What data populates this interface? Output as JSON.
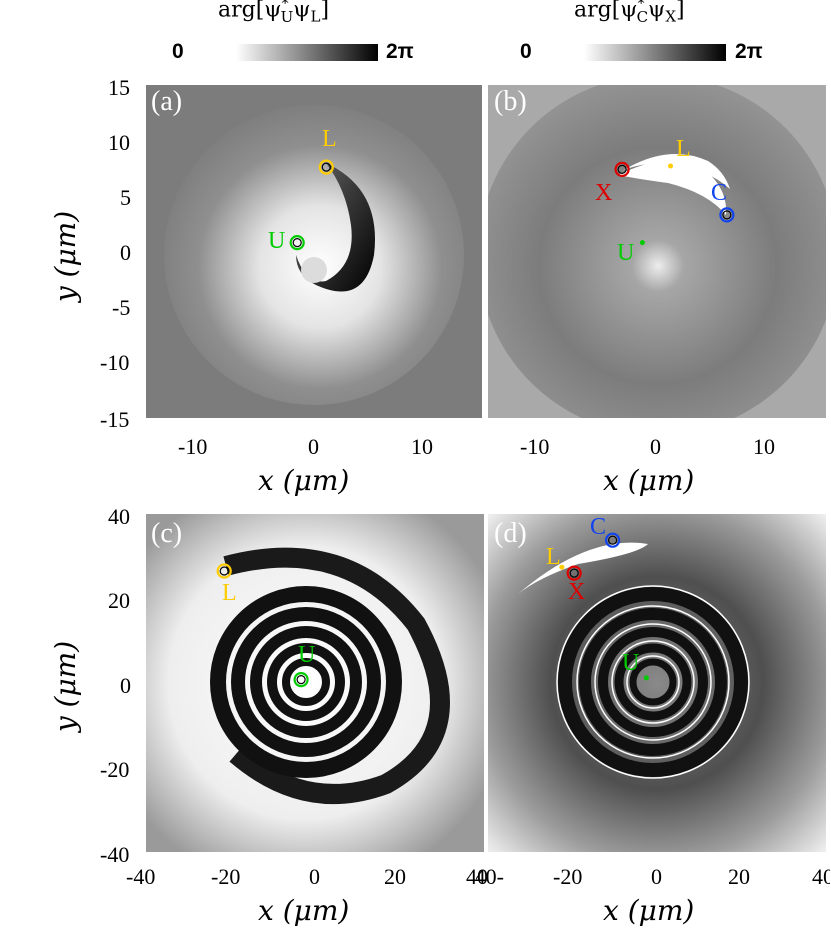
{
  "colorbars": [
    {
      "title": "arg[ψ*Uψ_L]",
      "title_base": "arg[ψ",
      "t_sup": "*",
      "t_sub1": "U",
      "t_mid": "ψ",
      "t_sub2": "L",
      "t_end": "]",
      "min_label": "0",
      "max_label": "2π"
    },
    {
      "title": "arg[ψ*Cψ_X]",
      "title_base": "arg[ψ",
      "t_sup": "*",
      "t_sub1": "C",
      "t_mid": "ψ",
      "t_sub2": "X",
      "t_end": "]",
      "min_label": "0",
      "max_label": "2π"
    }
  ],
  "colors": {
    "U": "#00cc00",
    "L": "#ffcc00",
    "X": "#dd0000",
    "C": "#1144ee"
  },
  "chart_data": [
    {
      "type": "heatmap",
      "panel": "(a)",
      "xlabel": "x (μm)",
      "ylabel": "y (μm)",
      "xlim": [
        -15,
        15
      ],
      "ylim": [
        -15,
        15
      ],
      "xticks": [
        "-10",
        "0",
        "10"
      ],
      "yticks": [
        "15",
        "10",
        "5",
        "0",
        "-5",
        "-10",
        "-15"
      ],
      "markers": [
        {
          "name": "U",
          "x": -1.5,
          "y": 0.8,
          "style": "ring"
        },
        {
          "name": "L",
          "x": 1.1,
          "y": 7.6,
          "style": "ring"
        }
      ]
    },
    {
      "type": "heatmap",
      "panel": "(b)",
      "xlabel": "x (μm)",
      "xlim": [
        -15,
        15
      ],
      "ylim": [
        -15,
        15
      ],
      "xticks": [
        "-10",
        "0",
        "10"
      ],
      "markers": [
        {
          "name": "L",
          "x": 1.2,
          "y": 7.7,
          "style": "dot"
        },
        {
          "name": "X",
          "x": -3.1,
          "y": 7.4,
          "style": "ring"
        },
        {
          "name": "C",
          "x": 6.2,
          "y": 3.3,
          "style": "ring"
        },
        {
          "name": "U",
          "x": -1.3,
          "y": 0.8,
          "style": "dot"
        }
      ]
    },
    {
      "type": "heatmap",
      "panel": "(c)",
      "xlabel": "x (μm)",
      "ylabel": "y (μm)",
      "xlim": [
        -40,
        40
      ],
      "ylim": [
        -40,
        40
      ],
      "xticks": [
        "-40",
        "-20",
        "0",
        "20",
        "40"
      ],
      "yticks": [
        "40",
        "20",
        "0",
        "-20",
        "-40"
      ],
      "markers": [
        {
          "name": "L",
          "x": -21.5,
          "y": 26.5,
          "style": "ring"
        },
        {
          "name": "U",
          "x": -3.3,
          "y": 0.8,
          "style": "ring"
        }
      ]
    },
    {
      "type": "heatmap",
      "panel": "(d)",
      "xlabel": "x (μm)",
      "xlim": [
        -40,
        40
      ],
      "ylim": [
        -40,
        40
      ],
      "xticks": [
        "-40",
        "-20",
        "0",
        "20",
        "40"
      ],
      "markers": [
        {
          "name": "C",
          "x": -10.5,
          "y": 33.8,
          "style": "ring"
        },
        {
          "name": "L",
          "x": -22.5,
          "y": 27.4,
          "style": "dot"
        },
        {
          "name": "X",
          "x": -19.6,
          "y": 26.0,
          "style": "ring"
        },
        {
          "name": "U",
          "x": -2.5,
          "y": 1.2,
          "style": "dot"
        }
      ]
    }
  ]
}
